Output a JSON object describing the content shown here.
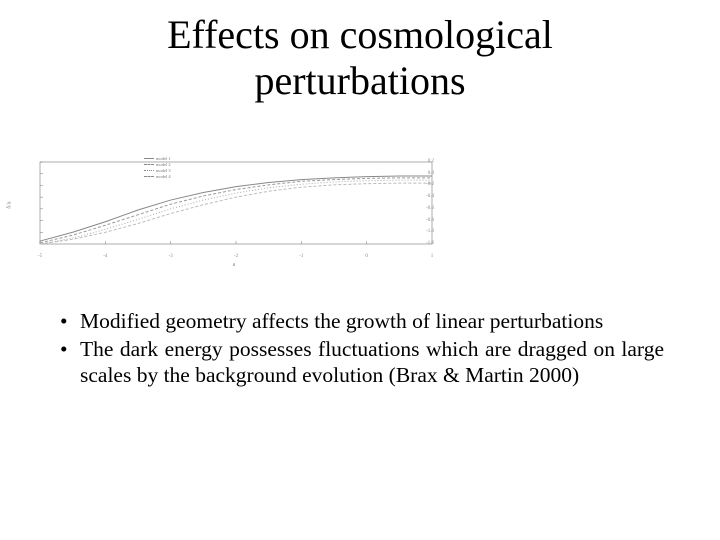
{
  "title_line1": "Effects on cosmological",
  "title_line2": "perturbations",
  "chart": {
    "type": "line",
    "background_color": "#ffffff",
    "axis_color": "#777777",
    "grid_color": "#eeeeee",
    "title": "",
    "xlabel": "a",
    "ylabel": "δ/a",
    "label_fontsize": 6,
    "xlim": [
      -5,
      1
    ],
    "ylim": [
      -1.2,
      0.2
    ],
    "xticks": [
      -5,
      -4,
      -3,
      -2,
      -1,
      0,
      1
    ],
    "yticks": [
      -1.2,
      -1.0,
      -0.8,
      -0.6,
      -0.4,
      -0.2,
      0.0,
      0.2
    ],
    "series": [
      {
        "name": "series-a",
        "color": "#888888",
        "dash": "solid",
        "width": 1,
        "x": [
          -5,
          -4.5,
          -4,
          -3.5,
          -3,
          -2.5,
          -2,
          -1.5,
          -1,
          -0.5,
          0,
          0.5,
          1
        ],
        "y": [
          -1.15,
          -1.0,
          -0.82,
          -0.62,
          -0.45,
          -0.32,
          -0.22,
          -0.15,
          -0.1,
          -0.07,
          -0.05,
          -0.04,
          -0.04
        ]
      },
      {
        "name": "series-b",
        "color": "#9a9a9a",
        "dash": "dashed",
        "width": 1,
        "x": [
          -5,
          -4.5,
          -4,
          -3.5,
          -3,
          -2.5,
          -2,
          -1.5,
          -1,
          -0.5,
          0,
          0.5,
          1
        ],
        "y": [
          -1.18,
          -1.05,
          -0.88,
          -0.7,
          -0.52,
          -0.38,
          -0.27,
          -0.19,
          -0.13,
          -0.1,
          -0.08,
          -0.07,
          -0.07
        ]
      },
      {
        "name": "series-c",
        "color": "#aaaaaa",
        "dash": "dotted",
        "width": 1,
        "x": [
          -5,
          -4.5,
          -4,
          -3.5,
          -3,
          -2.5,
          -2,
          -1.5,
          -1,
          -0.5,
          0,
          0.5,
          1
        ],
        "y": [
          -1.2,
          -1.1,
          -0.95,
          -0.78,
          -0.6,
          -0.45,
          -0.33,
          -0.24,
          -0.18,
          -0.14,
          -0.12,
          -0.11,
          -0.11
        ]
      },
      {
        "name": "series-d",
        "color": "#bbbbbb",
        "dash": "dashed",
        "width": 1,
        "x": [
          -5,
          -4.5,
          -4,
          -3.5,
          -3,
          -2.5,
          -2,
          -1.5,
          -1,
          -0.5,
          0,
          0.5,
          1
        ],
        "y": [
          -1.2,
          -1.12,
          -1.0,
          -0.85,
          -0.68,
          -0.53,
          -0.4,
          -0.3,
          -0.23,
          -0.19,
          -0.17,
          -0.16,
          -0.16
        ]
      }
    ],
    "legend": {
      "position": "top-center-left",
      "items": [
        "model 1",
        "model 2",
        "model 3",
        "model 4"
      ],
      "fontsize": 4.5,
      "text_color": "#777777"
    }
  },
  "bullets": [
    "Modified geometry affects the growth of linear perturbations",
    "The dark energy possesses fluctuations which are dragged on large scales by the background evolution  (Brax & Martin 2000)"
  ]
}
